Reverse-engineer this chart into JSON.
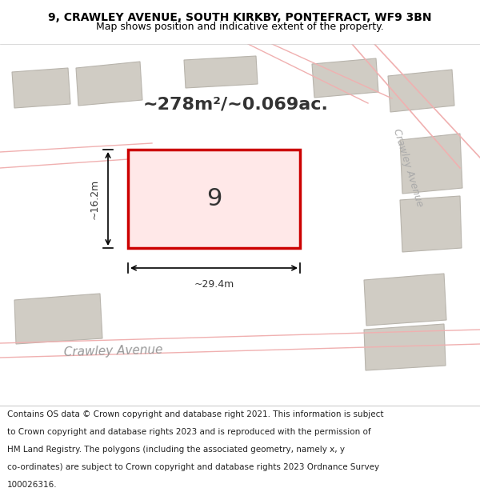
{
  "title_line1": "9, CRAWLEY AVENUE, SOUTH KIRKBY, PONTEFRACT, WF9 3BN",
  "title_line2": "Map shows position and indicative extent of the property.",
  "area_text": "~278m²/~0.069ac.",
  "property_number": "9",
  "dim_width": "~29.4m",
  "dim_height": "~16.2m",
  "footer_lines": [
    "Contains OS data © Crown copyright and database right 2021. This information is subject",
    "to Crown copyright and database rights 2023 and is reproduced with the permission of",
    "HM Land Registry. The polygons (including the associated geometry, namely x, y",
    "co-ordinates) are subject to Crown copyright and database rights 2023 Ordnance Survey",
    "100026316."
  ],
  "map_bg": "#f0ede6",
  "property_outline_color": "#cc0000",
  "property_fill": "#ffe8e8",
  "street_label_bottom": "Crawley Avenue",
  "street_label_right": "Crawley Avenue",
  "title_fontsize": 10,
  "subtitle_fontsize": 9,
  "area_fontsize": 16,
  "number_fontsize": 22,
  "dim_fontsize": 9,
  "footer_fontsize": 7.5,
  "road_line_color": "#f0b0b0",
  "building_color": "#d0ccc4",
  "building_outline": "#b8b4ac"
}
